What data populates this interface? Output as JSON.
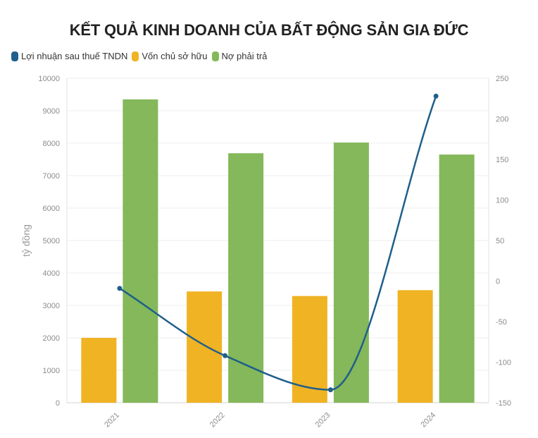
{
  "chart_data": {
    "type": "bar",
    "title": "KẾT QUẢ KINH DOANH CỦA BẤT ĐỘNG SẢN GIA ĐỨC",
    "ylabel": "tỷ đồng",
    "y2label": "",
    "categories": [
      "2021",
      "2022",
      "2023",
      "2024"
    ],
    "ylim": [
      0,
      10000
    ],
    "y2lim": [
      -150,
      250
    ],
    "yticks": [
      "0",
      "1000",
      "2000",
      "3000",
      "4000",
      "5000",
      "6000",
      "7000",
      "8000",
      "9000",
      "10000"
    ],
    "y2ticks": [
      "-150",
      "-100",
      "-50",
      "0",
      "50",
      "100",
      "150",
      "200",
      "250"
    ],
    "grid": true,
    "legend_position": "top-left",
    "series": [
      {
        "name": "Lợi nhuận sau thuế TNDN",
        "type": "line",
        "axis": "right",
        "color": "#1f5f8b",
        "values": [
          -9,
          -92,
          -134,
          228
        ]
      },
      {
        "name": "Vốn chủ sở hữu",
        "type": "bar",
        "axis": "left",
        "color": "#f0b323",
        "values": [
          2000,
          3430,
          3290,
          3470
        ]
      },
      {
        "name": "Nợ phải trả",
        "type": "bar",
        "axis": "left",
        "color": "#84b85a",
        "values": [
          9350,
          7690,
          8020,
          7650
        ]
      }
    ]
  }
}
